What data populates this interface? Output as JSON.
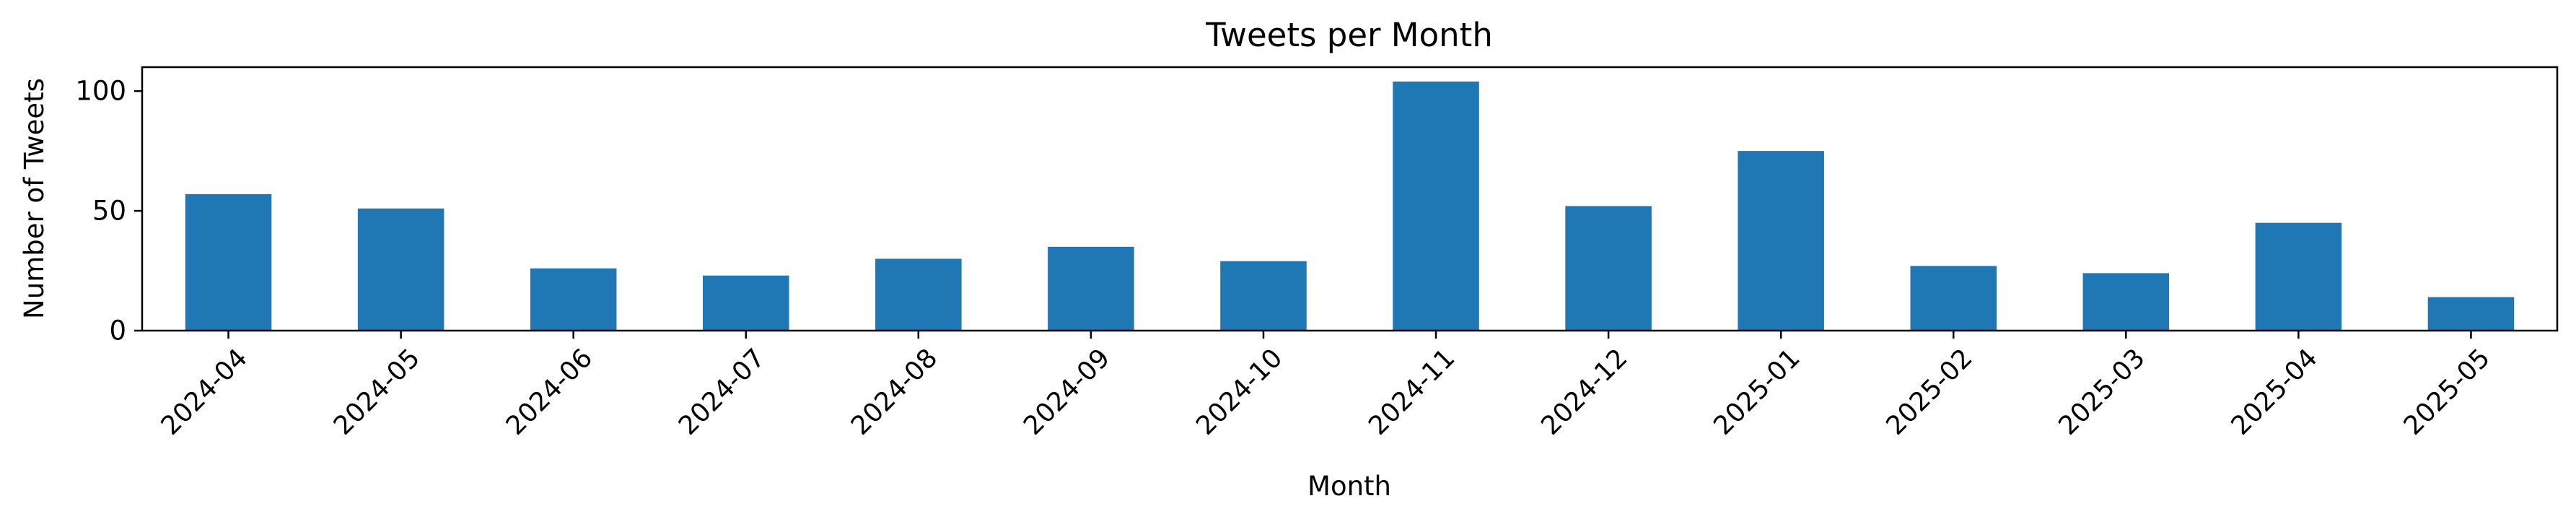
{
  "chart_data": {
    "type": "bar",
    "title": "Tweets per Month",
    "xlabel": "Month",
    "ylabel": "Number of Tweets",
    "categories": [
      "2024-04",
      "2024-05",
      "2024-06",
      "2024-07",
      "2024-08",
      "2024-09",
      "2024-10",
      "2024-11",
      "2024-12",
      "2025-01",
      "2025-02",
      "2025-03",
      "2025-04",
      "2025-05"
    ],
    "values": [
      57,
      51,
      26,
      23,
      30,
      35,
      29,
      104,
      52,
      75,
      27,
      24,
      45,
      14
    ],
    "ylim": [
      0,
      110
    ],
    "yticks": [
      0,
      50,
      100
    ],
    "bar_color": "#1f77b4",
    "grid": false,
    "legend": "none"
  }
}
